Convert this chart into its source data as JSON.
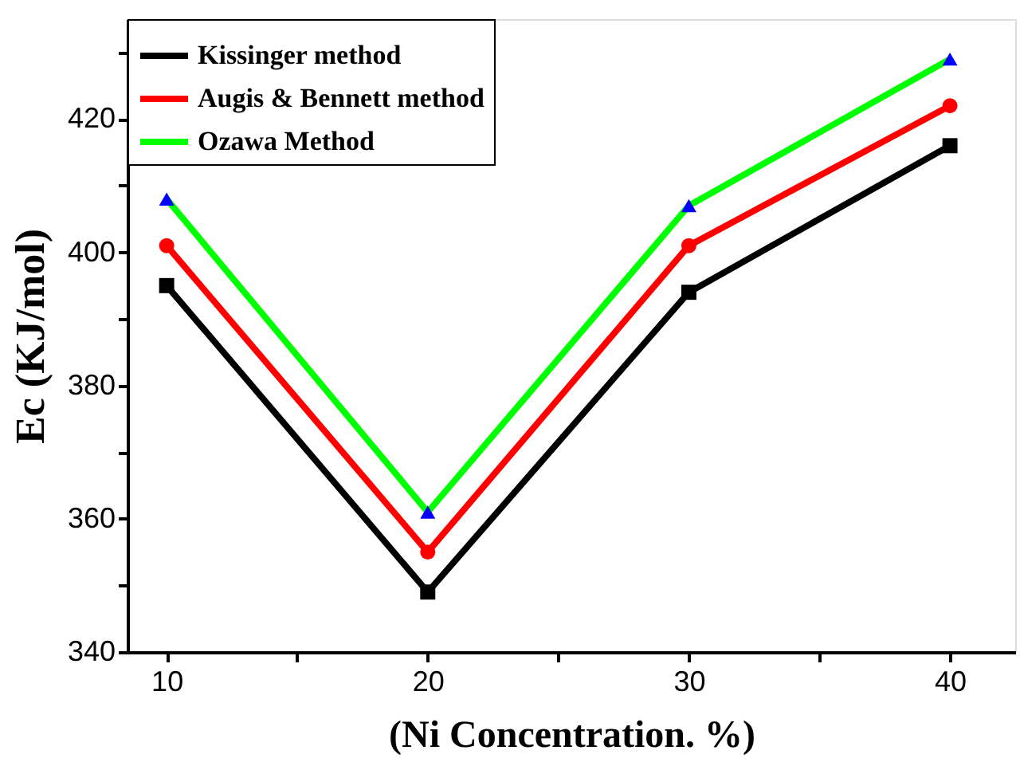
{
  "chart_data": {
    "type": "line",
    "xlabel": "(Ni Concentration. %)",
    "ylabel": "Ec (KJ/mol)",
    "x": [
      10,
      20,
      30,
      40
    ],
    "series": [
      {
        "name": "Kissinger method",
        "color": "#000000",
        "marker": "square",
        "values": [
          395,
          349,
          394,
          416
        ]
      },
      {
        "name": "Augis & Bennett method",
        "color": "#ff0000",
        "marker": "circle",
        "values": [
          401,
          355,
          401,
          422
        ]
      },
      {
        "name": "Ozawa Method",
        "color": "#00ff00",
        "colors": [
          "#0000ff",
          "#0000ff",
          "#0000ff",
          "#0000ff"
        ],
        "marker": "triangle",
        "values": [
          408,
          361,
          407,
          429
        ]
      }
    ],
    "xlim": [
      8.5,
      42.5
    ],
    "ylim": [
      340,
      435
    ],
    "xticks": [
      10,
      {
        "value": 15,
        "label": null
      },
      20,
      {
        "value": 25,
        "label": null
      },
      30,
      {
        "value": 35,
        "label": null
      },
      40
    ],
    "yticks": [
      340,
      {
        "value": 350,
        "label": null
      },
      360,
      {
        "value": 370,
        "label": null
      },
      380,
      {
        "value": 390,
        "label": null
      },
      400,
      {
        "value": 410,
        "label": null
      },
      420,
      {
        "value": 430,
        "label": null
      }
    ],
    "grid": false,
    "legend": "top left",
    "line_style": "solid"
  }
}
